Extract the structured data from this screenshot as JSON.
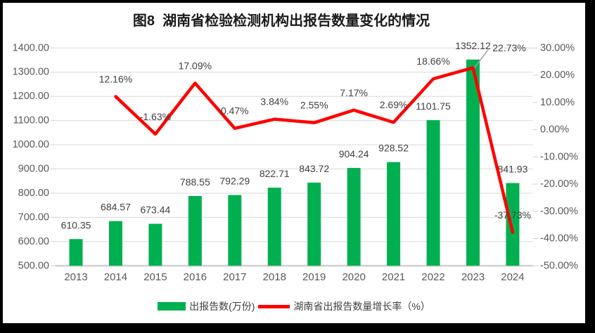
{
  "window": {
    "frame_color": "#000000",
    "background": "#FFFFFF"
  },
  "chart_data": {
    "type": "combo-bar-line",
    "title": "图8  湖南省检验检测机构出报告数量变化的情况",
    "categories": [
      "2013",
      "2014",
      "2015",
      "2016",
      "2017",
      "2018",
      "2019",
      "2020",
      "2021",
      "2022",
      "2023",
      "2024"
    ],
    "series": [
      {
        "name": "出报告数(万份)",
        "type": "bar",
        "axis": "left",
        "color": "#00B050",
        "values": [
          610.35,
          684.57,
          673.44,
          788.55,
          792.29,
          822.71,
          843.72,
          904.24,
          928.52,
          1101.75,
          1352.12,
          841.93
        ],
        "data_labels": [
          "610.35",
          "684.57",
          "673.44",
          "788.55",
          "792.29",
          "822.71",
          "843.72",
          "904.24",
          "928.52",
          "1101.75",
          "1352.12",
          "841.93"
        ]
      },
      {
        "name": "湖南省出报告数量增长率（%）",
        "type": "line",
        "axis": "right",
        "color": "#FF0000",
        "values": [
          null,
          12.16,
          -1.63,
          17.09,
          0.47,
          3.84,
          2.55,
          7.17,
          2.69,
          18.66,
          22.73,
          -37.73
        ],
        "data_labels": [
          null,
          "12.16%",
          "-1.63%",
          "17.09%",
          "0.47%",
          "3.84%",
          "2.55%",
          "7.17%",
          "2.69%",
          "18.66%",
          "22.73%",
          "-37.73%"
        ]
      }
    ],
    "left_axis": {
      "min": 500,
      "max": 1400,
      "step": 100,
      "tick_labels": [
        "1400.00",
        "1300.00",
        "1200.00",
        "1100.00",
        "1000.00",
        "900.00",
        "800.00",
        "700.00",
        "600.00",
        "500.00"
      ]
    },
    "right_axis": {
      "min": -50,
      "max": 30,
      "step": 10,
      "tick_labels": [
        "30.00%",
        "20.00%",
        "10.00%",
        "0.00%",
        "-10.00%",
        "-20.00%",
        "-30.00%",
        "-40.00%",
        "-50.00%"
      ]
    },
    "grid": true,
    "legend_position": "bottom",
    "colors": {
      "gridline": "#D9D9D9",
      "axis_line": "#D1D1D1",
      "tick_label": "#595959",
      "data_label": "#404040",
      "title": "#1A1A1A",
      "leader_line": "#A6A6A6"
    }
  }
}
